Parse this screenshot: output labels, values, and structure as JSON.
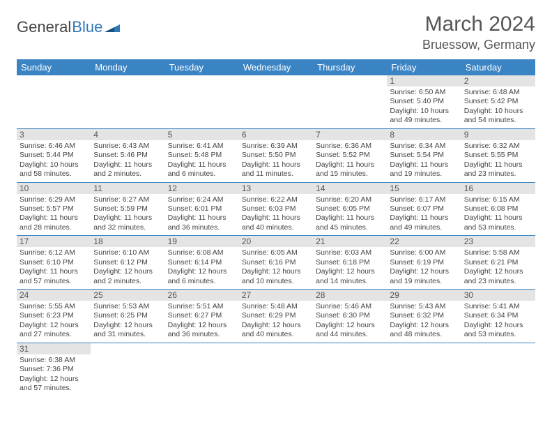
{
  "brand": {
    "word1": "General",
    "word2": "Blue"
  },
  "title": "March 2024",
  "location": "Bruessow, Germany",
  "colors": {
    "header_bg": "#3b84c4",
    "header_text": "#ffffff",
    "daynum_bg": "#e4e4e4",
    "border": "#3b84c4",
    "brand_blue": "#2f79b9"
  },
  "daysOfWeek": [
    "Sunday",
    "Monday",
    "Tuesday",
    "Wednesday",
    "Thursday",
    "Friday",
    "Saturday"
  ],
  "weeks": [
    [
      null,
      null,
      null,
      null,
      null,
      {
        "n": "1",
        "sr": "6:50 AM",
        "ss": "5:40 PM",
        "dl": "10 hours and 49 minutes."
      },
      {
        "n": "2",
        "sr": "6:48 AM",
        "ss": "5:42 PM",
        "dl": "10 hours and 54 minutes."
      }
    ],
    [
      {
        "n": "3",
        "sr": "6:46 AM",
        "ss": "5:44 PM",
        "dl": "10 hours and 58 minutes."
      },
      {
        "n": "4",
        "sr": "6:43 AM",
        "ss": "5:46 PM",
        "dl": "11 hours and 2 minutes."
      },
      {
        "n": "5",
        "sr": "6:41 AM",
        "ss": "5:48 PM",
        "dl": "11 hours and 6 minutes."
      },
      {
        "n": "6",
        "sr": "6:39 AM",
        "ss": "5:50 PM",
        "dl": "11 hours and 11 minutes."
      },
      {
        "n": "7",
        "sr": "6:36 AM",
        "ss": "5:52 PM",
        "dl": "11 hours and 15 minutes."
      },
      {
        "n": "8",
        "sr": "6:34 AM",
        "ss": "5:54 PM",
        "dl": "11 hours and 19 minutes."
      },
      {
        "n": "9",
        "sr": "6:32 AM",
        "ss": "5:55 PM",
        "dl": "11 hours and 23 minutes."
      }
    ],
    [
      {
        "n": "10",
        "sr": "6:29 AM",
        "ss": "5:57 PM",
        "dl": "11 hours and 28 minutes."
      },
      {
        "n": "11",
        "sr": "6:27 AM",
        "ss": "5:59 PM",
        "dl": "11 hours and 32 minutes."
      },
      {
        "n": "12",
        "sr": "6:24 AM",
        "ss": "6:01 PM",
        "dl": "11 hours and 36 minutes."
      },
      {
        "n": "13",
        "sr": "6:22 AM",
        "ss": "6:03 PM",
        "dl": "11 hours and 40 minutes."
      },
      {
        "n": "14",
        "sr": "6:20 AM",
        "ss": "6:05 PM",
        "dl": "11 hours and 45 minutes."
      },
      {
        "n": "15",
        "sr": "6:17 AM",
        "ss": "6:07 PM",
        "dl": "11 hours and 49 minutes."
      },
      {
        "n": "16",
        "sr": "6:15 AM",
        "ss": "6:08 PM",
        "dl": "11 hours and 53 minutes."
      }
    ],
    [
      {
        "n": "17",
        "sr": "6:12 AM",
        "ss": "6:10 PM",
        "dl": "11 hours and 57 minutes."
      },
      {
        "n": "18",
        "sr": "6:10 AM",
        "ss": "6:12 PM",
        "dl": "12 hours and 2 minutes."
      },
      {
        "n": "19",
        "sr": "6:08 AM",
        "ss": "6:14 PM",
        "dl": "12 hours and 6 minutes."
      },
      {
        "n": "20",
        "sr": "6:05 AM",
        "ss": "6:16 PM",
        "dl": "12 hours and 10 minutes."
      },
      {
        "n": "21",
        "sr": "6:03 AM",
        "ss": "6:18 PM",
        "dl": "12 hours and 14 minutes."
      },
      {
        "n": "22",
        "sr": "6:00 AM",
        "ss": "6:19 PM",
        "dl": "12 hours and 19 minutes."
      },
      {
        "n": "23",
        "sr": "5:58 AM",
        "ss": "6:21 PM",
        "dl": "12 hours and 23 minutes."
      }
    ],
    [
      {
        "n": "24",
        "sr": "5:55 AM",
        "ss": "6:23 PM",
        "dl": "12 hours and 27 minutes."
      },
      {
        "n": "25",
        "sr": "5:53 AM",
        "ss": "6:25 PM",
        "dl": "12 hours and 31 minutes."
      },
      {
        "n": "26",
        "sr": "5:51 AM",
        "ss": "6:27 PM",
        "dl": "12 hours and 36 minutes."
      },
      {
        "n": "27",
        "sr": "5:48 AM",
        "ss": "6:29 PM",
        "dl": "12 hours and 40 minutes."
      },
      {
        "n": "28",
        "sr": "5:46 AM",
        "ss": "6:30 PM",
        "dl": "12 hours and 44 minutes."
      },
      {
        "n": "29",
        "sr": "5:43 AM",
        "ss": "6:32 PM",
        "dl": "12 hours and 48 minutes."
      },
      {
        "n": "30",
        "sr": "5:41 AM",
        "ss": "6:34 PM",
        "dl": "12 hours and 53 minutes."
      }
    ],
    [
      {
        "n": "31",
        "sr": "6:38 AM",
        "ss": "7:36 PM",
        "dl": "12 hours and 57 minutes."
      },
      null,
      null,
      null,
      null,
      null,
      null
    ]
  ],
  "labels": {
    "sunrise": "Sunrise:",
    "sunset": "Sunset:",
    "daylight": "Daylight:"
  }
}
